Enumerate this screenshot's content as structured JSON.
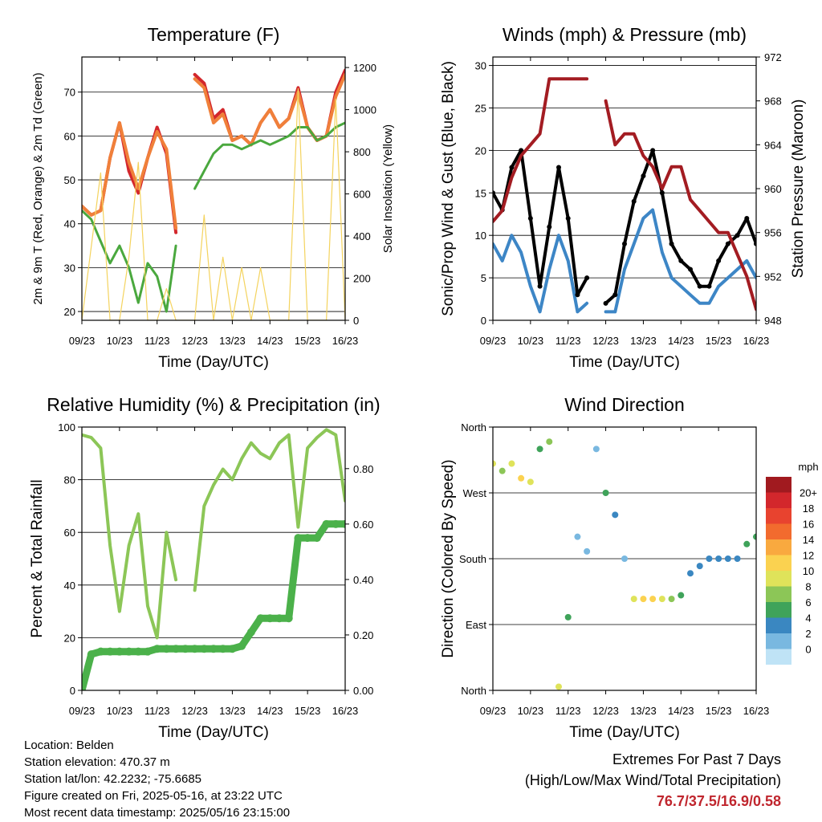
{
  "x_ticks": [
    "09/23",
    "10/23",
    "11/23",
    "12/23",
    "13/23",
    "14/23",
    "15/23",
    "16/23"
  ],
  "x_label": "Time (Day/UTC)",
  "panels": {
    "temperature": {
      "title": "Temperature (F)",
      "ylabel_left": "2m & 9m T (Red, Orange) & 2m Td (Green)",
      "ylabel_right": "Solar Insolation (Yellow)",
      "left_ticks": [
        "20",
        "30",
        "40",
        "50",
        "60",
        "70"
      ],
      "right_ticks": [
        "0",
        "200",
        "400",
        "600",
        "800",
        "1000",
        "1200"
      ]
    },
    "winds": {
      "title": "Winds (mph) & Pressure (mb)",
      "ylabel_left": "Sonic/Prop Wind & Gust (Blue, Black)",
      "ylabel_right": "Station Pressure (Maroon)",
      "left_ticks": [
        "0",
        "5",
        "10",
        "15",
        "20",
        "25",
        "30"
      ],
      "right_ticks": [
        "948",
        "952",
        "956",
        "960",
        "964",
        "968",
        "972"
      ]
    },
    "humidity": {
      "title": "Relative Humidity (%) & Precipitation (in)",
      "ylabel_left": "Percent & Total Rainfall",
      "left_ticks": [
        "0",
        "20",
        "40",
        "60",
        "80",
        "100"
      ],
      "right_ticks": [
        "0.00",
        "0.20",
        "0.40",
        "0.60",
        "0.80"
      ]
    },
    "direction": {
      "title": "Wind Direction",
      "ylabel_left": "Direction (Colored By Speed)",
      "left_ticks": [
        "North",
        "East",
        "South",
        "West",
        "North"
      ],
      "legend_title": "mph",
      "legend_labels": [
        "20+",
        "18",
        "16",
        "14",
        "12",
        "10",
        "8",
        "6",
        "4",
        "2",
        "0"
      ],
      "legend_colors": [
        "#a11a1f",
        "#d3272c",
        "#e8432f",
        "#f26b2e",
        "#f9a93f",
        "#fbd250",
        "#dfe35a",
        "#8cc657",
        "#3fa35a",
        "#3a87c1",
        "#79b8e0",
        "#bfe3f6"
      ]
    }
  },
  "chart_data": [
    {
      "type": "line",
      "title": "Temperature (F)",
      "xlabel": "Time (Day/UTC)",
      "ylabel": "2m & 9m T (Red, Orange) & 2m Td (Green)",
      "ylim": [
        18,
        78
      ],
      "y2label": "Solar Insolation (Yellow)",
      "y2lim": [
        0,
        1250
      ],
      "x": [
        9.0,
        9.25,
        9.5,
        9.75,
        10.0,
        10.25,
        10.5,
        10.75,
        11.0,
        11.25,
        11.5,
        11.75,
        12.0,
        12.25,
        12.5,
        12.75,
        13.0,
        13.25,
        13.5,
        13.75,
        14.0,
        14.25,
        14.5,
        14.75,
        15.0,
        15.25,
        15.5,
        15.75,
        16.0
      ],
      "series": [
        {
          "name": "2m T",
          "color": "#d3272c",
          "values": [
            44,
            42,
            43,
            55,
            63,
            52,
            47,
            55,
            62,
            56,
            38,
            null,
            74,
            72,
            64,
            66,
            59,
            60,
            58,
            63,
            66,
            62,
            64,
            71,
            62,
            59,
            60,
            70,
            75
          ]
        },
        {
          "name": "9m T",
          "color": "#f0803a",
          "values": [
            44,
            42,
            43,
            55,
            63,
            54,
            48,
            55,
            61,
            57,
            39,
            null,
            73,
            71,
            63,
            65,
            59,
            60,
            58,
            63,
            66,
            62,
            64,
            70,
            62,
            59,
            60,
            69,
            74
          ]
        },
        {
          "name": "2m Td",
          "color": "#4aa83e",
          "values": [
            43,
            41,
            36,
            31,
            35,
            30,
            22,
            31,
            28,
            20,
            35,
            null,
            48,
            52,
            56,
            58,
            58,
            57,
            58,
            59,
            58,
            59,
            60,
            62,
            62,
            59,
            60,
            62,
            63
          ]
        },
        {
          "name": "Solar",
          "color": "#f4d35e",
          "axis": "right",
          "values": [
            0,
            350,
            700,
            0,
            0,
            300,
            750,
            0,
            0,
            150,
            0,
            0,
            0,
            500,
            0,
            300,
            0,
            250,
            0,
            250,
            0,
            0,
            0,
            1100,
            0,
            0,
            0,
            1050,
            0
          ]
        }
      ]
    },
    {
      "type": "line",
      "title": "Winds (mph) & Pressure (mb)",
      "xlabel": "Time (Day/UTC)",
      "ylabel": "Sonic/Prop Wind & Gust (Blue, Black)",
      "ylim": [
        0,
        31
      ],
      "y2label": "Station Pressure (Maroon)",
      "y2lim": [
        948,
        972
      ],
      "x": [
        9.0,
        9.25,
        9.5,
        9.75,
        10.0,
        10.25,
        10.5,
        10.75,
        11.0,
        11.25,
        11.5,
        11.75,
        12.0,
        12.25,
        12.5,
        12.75,
        13.0,
        13.25,
        13.5,
        13.75,
        14.0,
        14.25,
        14.5,
        14.75,
        15.0,
        15.25,
        15.5,
        15.75,
        16.0
      ],
      "series": [
        {
          "name": "Sonic/Prop Wind",
          "color": "#3d86c6",
          "values": [
            9,
            7,
            10,
            8,
            4,
            1,
            6,
            10,
            7,
            1,
            2,
            null,
            1,
            1,
            6,
            9,
            12,
            13,
            8,
            5,
            4,
            3,
            2,
            2,
            4,
            5,
            6,
            7,
            5
          ]
        },
        {
          "name": "Gust",
          "color": "#000000",
          "values": [
            15,
            13,
            18,
            20,
            12,
            4,
            11,
            18,
            12,
            3,
            5,
            null,
            2,
            3,
            9,
            14,
            17,
            20,
            15,
            9,
            7,
            6,
            4,
            4,
            7,
            9,
            10,
            12,
            9
          ]
        },
        {
          "name": "Station Pressure",
          "color": "#a31c22",
          "axis": "right",
          "values": [
            957,
            958,
            961,
            963,
            964,
            965,
            970,
            970,
            970,
            970,
            970,
            null,
            968,
            964,
            965,
            965,
            963,
            962,
            960,
            962,
            962,
            959,
            958,
            957,
            956,
            956,
            954,
            952,
            949
          ]
        }
      ]
    },
    {
      "type": "line",
      "title": "Relative Humidity (%) & Precipitation (in)",
      "xlabel": "Time (Day/UTC)",
      "ylabel": "Percent & Total Rainfall",
      "ylim": [
        0,
        100
      ],
      "y2lim": [
        0,
        0.95
      ],
      "x": [
        9.0,
        9.25,
        9.5,
        9.75,
        10.0,
        10.25,
        10.5,
        10.75,
        11.0,
        11.25,
        11.5,
        11.75,
        12.0,
        12.25,
        12.5,
        12.75,
        13.0,
        13.25,
        13.5,
        13.75,
        14.0,
        14.25,
        14.5,
        14.75,
        15.0,
        15.25,
        15.5,
        15.75,
        16.0
      ],
      "series": [
        {
          "name": "Relative Humidity",
          "color": "#8cc657",
          "values": [
            97,
            96,
            92,
            55,
            30,
            55,
            67,
            32,
            20,
            60,
            42,
            null,
            38,
            70,
            78,
            84,
            80,
            88,
            94,
            90,
            88,
            94,
            97,
            62,
            92,
            96,
            99,
            97,
            72
          ]
        },
        {
          "name": "Total Rainfall",
          "color": "#4bb14a",
          "axis": "right",
          "values": [
            0.0,
            0.13,
            0.14,
            0.14,
            0.14,
            0.14,
            0.14,
            0.14,
            0.15,
            0.15,
            0.15,
            0.15,
            0.15,
            0.15,
            0.15,
            0.15,
            0.15,
            0.16,
            0.21,
            0.26,
            0.26,
            0.26,
            0.26,
            0.55,
            0.55,
            0.55,
            0.6,
            0.6,
            0.6
          ]
        }
      ]
    },
    {
      "type": "scatter",
      "title": "Wind Direction",
      "xlabel": "Time (Day/UTC)",
      "ylabel": "Direction (Colored By Speed)",
      "ylim": [
        0,
        360
      ],
      "yticks": [
        "North",
        "East",
        "South",
        "West",
        "North"
      ],
      "x": [
        9.0,
        9.25,
        9.5,
        9.75,
        10.0,
        10.25,
        10.5,
        10.75,
        11.0,
        11.25,
        11.5,
        11.75,
        12.0,
        12.25,
        12.5,
        12.75,
        13.0,
        13.25,
        13.5,
        13.75,
        14.0,
        14.25,
        14.5,
        14.75,
        15.0,
        15.25,
        15.5,
        15.75,
        16.0
      ],
      "series": [
        {
          "name": "Direction",
          "values": [
            310,
            300,
            310,
            290,
            285,
            330,
            340,
            5,
            100,
            210,
            190,
            330,
            270,
            240,
            180,
            125,
            125,
            125,
            125,
            125,
            130,
            160,
            170,
            180,
            180,
            180,
            180,
            200,
            210
          ]
        },
        {
          "name": "Speed",
          "values": [
            9,
            8,
            10,
            12,
            10,
            5,
            8,
            9,
            5,
            1,
            2,
            1,
            6,
            3,
            2,
            10,
            12,
            11,
            10,
            8,
            6,
            4,
            3,
            3,
            4,
            3,
            4,
            5,
            5
          ]
        }
      ]
    }
  ],
  "info": {
    "location": "Location: Belden",
    "elevation": "Station elevation: 470.37 m",
    "latlon": "Station lat/lon: 42.2232; -75.6685",
    "created": "Figure created on Fri, 2025-05-16, at 23:22 UTC",
    "recent": "Most recent data timestamp: 2025/05/16 23:15:00"
  },
  "extremes": {
    "line1": "Extremes For Past 7 Days",
    "line2": "(High/Low/Max Wind/Total Precipitation)",
    "value": "76.7/37.5/16.9/0.58"
  }
}
